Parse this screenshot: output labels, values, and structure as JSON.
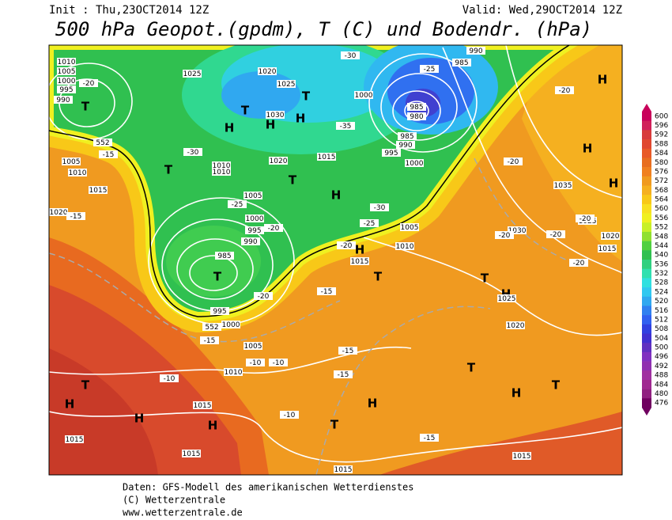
{
  "header": {
    "init": "Init : Thu,23OCT2014 12Z",
    "valid": "Valid: Wed,29OCT2014 12Z",
    "title": "500 hPa Geopot.(gpdm), T (C) und Bodendr. (hPa)"
  },
  "centers": [
    "T",
    "H",
    "T",
    "H",
    "T",
    "H",
    "T",
    "T",
    "H",
    "T",
    "T",
    "T",
    "H",
    "T",
    "H",
    "T",
    "H",
    "H",
    "H",
    "T",
    "H",
    "H",
    "H",
    "T",
    "H",
    "H"
  ],
  "isobar_labels": [
    1010,
    1005,
    1000,
    995,
    990,
    1025,
    1020,
    1025,
    1030,
    1020,
    1010,
    1010,
    1015,
    1005,
    1000,
    995,
    990,
    985,
    995,
    1000,
    1005,
    1010,
    1015,
    1015,
    1015,
    1015,
    1015,
    1000,
    985,
    990,
    985,
    980,
    985,
    990,
    995,
    1000,
    1005,
    1010,
    1015,
    1035,
    1030,
    1025,
    1020,
    1015,
    1025,
    1020,
    1010,
    1005,
    1015,
    1020
  ],
  "temperature_labels": [
    -20,
    -30,
    -25,
    -20,
    -20,
    -15,
    -10,
    -10,
    -10,
    -10,
    -15,
    -15,
    -15,
    -15,
    -20,
    -20,
    -20,
    -20,
    -20,
    -25,
    -30,
    -35,
    -30,
    -25,
    -20,
    -15,
    -15,
    -20
  ],
  "height_labels": [
    552,
    552
  ],
  "scale": {
    "levels": [
      600,
      596,
      592,
      588,
      584,
      580,
      576,
      572,
      568,
      564,
      560,
      556,
      552,
      548,
      544,
      540,
      536,
      532,
      528,
      524,
      520,
      516,
      512,
      508,
      504,
      500,
      496,
      492,
      488,
      484,
      480,
      476
    ],
    "colors": [
      "#c8005a",
      "#d0205a",
      "#d83c3c",
      "#e04830",
      "#e85a28",
      "#e86e20",
      "#f08020",
      "#f09a20",
      "#f5b020",
      "#f8c818",
      "#f8e020",
      "#f0f020",
      "#c8f028",
      "#90e030",
      "#50d040",
      "#30c050",
      "#30d080",
      "#30e0b0",
      "#30e0e0",
      "#30c8f0",
      "#30a8f0",
      "#3080f0",
      "#3060f0",
      "#3040e0",
      "#4030d0",
      "#6030c0",
      "#8030c0",
      "#9030b0",
      "#a030a0",
      "#a02890",
      "#902080",
      "#700060"
    ]
  },
  "footer": {
    "source": "Daten: GFS-Modell des amerikanischen Wetterdienstes",
    "copyright": "(C) Wetterzentrale",
    "url": "www.wetterzentrale.de"
  }
}
